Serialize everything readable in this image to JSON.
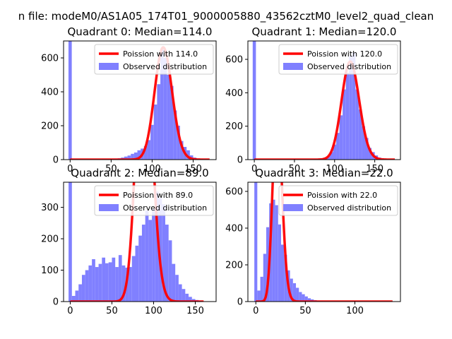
{
  "suptitle": "n file: modeM0/AS1A05_174T01_9000005880_43562cztM0_level2_quad_clean",
  "colors": {
    "poisson": "#ff0000",
    "observed": "#8080ff",
    "axes": "#000000"
  },
  "chart_data": [
    {
      "type": "bar",
      "title": "Quadrant 0: Median=114.0",
      "xlim": [
        -8,
        178
      ],
      "ylim": [
        0,
        700
      ],
      "xticks": [
        0,
        50,
        100,
        150
      ],
      "yticks": [
        0,
        200,
        400,
        600
      ],
      "legend_position": "top-right",
      "series": [
        {
          "name": "Poission with 114.0",
          "kind": "line",
          "mean": 114.0,
          "x": [
            0,
            170
          ]
        },
        {
          "name": "Observed distribution",
          "kind": "histogram",
          "bin_width": 4,
          "bins": [
            {
              "x0": -2,
              "count": 700
            },
            {
              "x0": 2,
              "count": 2
            },
            {
              "x0": 6,
              "count": 2
            },
            {
              "x0": 10,
              "count": 2
            },
            {
              "x0": 14,
              "count": 2
            },
            {
              "x0": 18,
              "count": 2
            },
            {
              "x0": 22,
              "count": 2
            },
            {
              "x0": 26,
              "count": 2
            },
            {
              "x0": 30,
              "count": 2
            },
            {
              "x0": 34,
              "count": 2
            },
            {
              "x0": 38,
              "count": 3
            },
            {
              "x0": 42,
              "count": 3
            },
            {
              "x0": 46,
              "count": 4
            },
            {
              "x0": 50,
              "count": 5
            },
            {
              "x0": 54,
              "count": 6
            },
            {
              "x0": 58,
              "count": 8
            },
            {
              "x0": 62,
              "count": 12
            },
            {
              "x0": 66,
              "count": 18
            },
            {
              "x0": 70,
              "count": 24
            },
            {
              "x0": 74,
              "count": 34
            },
            {
              "x0": 78,
              "count": 42
            },
            {
              "x0": 82,
              "count": 55
            },
            {
              "x0": 86,
              "count": 65
            },
            {
              "x0": 90,
              "count": 80
            },
            {
              "x0": 94,
              "count": 115
            },
            {
              "x0": 98,
              "count": 205
            },
            {
              "x0": 102,
              "count": 325
            },
            {
              "x0": 106,
              "count": 445
            },
            {
              "x0": 110,
              "count": 650
            },
            {
              "x0": 114,
              "count": 600
            },
            {
              "x0": 118,
              "count": 500
            },
            {
              "x0": 122,
              "count": 435
            },
            {
              "x0": 126,
              "count": 290
            },
            {
              "x0": 130,
              "count": 200
            },
            {
              "x0": 134,
              "count": 110
            },
            {
              "x0": 138,
              "count": 75
            },
            {
              "x0": 142,
              "count": 55
            },
            {
              "x0": 146,
              "count": 25
            },
            {
              "x0": 150,
              "count": 12
            },
            {
              "x0": 154,
              "count": 6
            },
            {
              "x0": 158,
              "count": 4
            },
            {
              "x0": 162,
              "count": 2
            }
          ]
        }
      ]
    },
    {
      "type": "bar",
      "title": "Quadrant 1: Median=120.0",
      "xlim": [
        -8,
        182
      ],
      "ylim": [
        0,
        710
      ],
      "xticks": [
        0,
        50,
        100,
        150
      ],
      "yticks": [
        0,
        200,
        400,
        600
      ],
      "legend_position": "top-right",
      "series": [
        {
          "name": "Poission with 120.0",
          "kind": "line",
          "mean": 120.0,
          "x": [
            0,
            175
          ]
        },
        {
          "name": "Observed distribution",
          "kind": "histogram",
          "bin_width": 4,
          "bins": [
            {
              "x0": -2,
              "count": 710
            },
            {
              "x0": 66,
              "count": 2
            },
            {
              "x0": 70,
              "count": 3
            },
            {
              "x0": 74,
              "count": 4
            },
            {
              "x0": 78,
              "count": 6
            },
            {
              "x0": 82,
              "count": 8
            },
            {
              "x0": 86,
              "count": 12
            },
            {
              "x0": 90,
              "count": 20
            },
            {
              "x0": 94,
              "count": 45
            },
            {
              "x0": 98,
              "count": 90
            },
            {
              "x0": 102,
              "count": 160
            },
            {
              "x0": 106,
              "count": 265
            },
            {
              "x0": 110,
              "count": 420
            },
            {
              "x0": 114,
              "count": 520
            },
            {
              "x0": 118,
              "count": 620
            },
            {
              "x0": 122,
              "count": 640
            },
            {
              "x0": 126,
              "count": 420
            },
            {
              "x0": 130,
              "count": 300
            },
            {
              "x0": 134,
              "count": 200
            },
            {
              "x0": 138,
              "count": 130
            },
            {
              "x0": 142,
              "count": 70
            },
            {
              "x0": 146,
              "count": 45
            },
            {
              "x0": 150,
              "count": 25
            },
            {
              "x0": 154,
              "count": 12
            },
            {
              "x0": 158,
              "count": 6
            },
            {
              "x0": 162,
              "count": 3
            }
          ]
        }
      ]
    },
    {
      "type": "bar",
      "title": "Quadrant 2: Median=89.0",
      "xlim": [
        -8,
        175
      ],
      "ylim": [
        0,
        380
      ],
      "xticks": [
        0,
        50,
        100,
        150
      ],
      "yticks": [
        0,
        100,
        200,
        300
      ],
      "legend_position": "top-right",
      "series": [
        {
          "name": "Poission with 89.0",
          "kind": "line",
          "mean": 89.0,
          "x": [
            0,
            160
          ]
        },
        {
          "name": "Observed distribution",
          "kind": "histogram",
          "bin_width": 4,
          "bins": [
            {
              "x0": -2,
              "count": 380
            },
            {
              "x0": 2,
              "count": 18
            },
            {
              "x0": 6,
              "count": 35
            },
            {
              "x0": 10,
              "count": 55
            },
            {
              "x0": 14,
              "count": 85
            },
            {
              "x0": 18,
              "count": 100
            },
            {
              "x0": 22,
              "count": 115
            },
            {
              "x0": 26,
              "count": 135
            },
            {
              "x0": 30,
              "count": 110
            },
            {
              "x0": 34,
              "count": 120
            },
            {
              "x0": 38,
              "count": 140
            },
            {
              "x0": 42,
              "count": 122
            },
            {
              "x0": 46,
              "count": 125
            },
            {
              "x0": 50,
              "count": 140
            },
            {
              "x0": 54,
              "count": 110
            },
            {
              "x0": 58,
              "count": 148
            },
            {
              "x0": 62,
              "count": 115
            },
            {
              "x0": 66,
              "count": 108
            },
            {
              "x0": 70,
              "count": 110
            },
            {
              "x0": 74,
              "count": 145
            },
            {
              "x0": 78,
              "count": 178
            },
            {
              "x0": 82,
              "count": 210
            },
            {
              "x0": 86,
              "count": 245
            },
            {
              "x0": 90,
              "count": 290
            },
            {
              "x0": 94,
              "count": 260
            },
            {
              "x0": 98,
              "count": 295
            },
            {
              "x0": 102,
              "count": 350
            },
            {
              "x0": 106,
              "count": 330
            },
            {
              "x0": 110,
              "count": 310
            },
            {
              "x0": 114,
              "count": 245
            },
            {
              "x0": 118,
              "count": 195
            },
            {
              "x0": 122,
              "count": 120
            },
            {
              "x0": 126,
              "count": 85
            },
            {
              "x0": 130,
              "count": 55
            },
            {
              "x0": 134,
              "count": 40
            },
            {
              "x0": 138,
              "count": 25
            },
            {
              "x0": 142,
              "count": 15
            },
            {
              "x0": 146,
              "count": 8
            },
            {
              "x0": 150,
              "count": 5
            },
            {
              "x0": 154,
              "count": 3
            }
          ]
        }
      ]
    },
    {
      "type": "bar",
      "title": "Quadrant 3: Median=22.0",
      "xlim": [
        -8,
        146
      ],
      "ylim": [
        0,
        650
      ],
      "xticks": [
        0,
        50,
        100
      ],
      "yticks": [
        0,
        200,
        400,
        600
      ],
      "legend_position": "top-right",
      "series": [
        {
          "name": "Poission with 22.0",
          "kind": "line",
          "mean": 22.0,
          "x": [
            0,
            138
          ]
        },
        {
          "name": "Observed distribution",
          "kind": "histogram",
          "bin_width": 3,
          "bins": [
            {
              "x0": -1.5,
              "count": 650
            },
            {
              "x0": 1.5,
              "count": 60
            },
            {
              "x0": 4.5,
              "count": 135
            },
            {
              "x0": 7.5,
              "count": 260
            },
            {
              "x0": 10.5,
              "count": 405
            },
            {
              "x0": 13.5,
              "count": 535
            },
            {
              "x0": 16.5,
              "count": 555
            },
            {
              "x0": 19.5,
              "count": 525
            },
            {
              "x0": 22.5,
              "count": 420
            },
            {
              "x0": 25.5,
              "count": 310
            },
            {
              "x0": 28.5,
              "count": 255
            },
            {
              "x0": 31.5,
              "count": 170
            },
            {
              "x0": 34.5,
              "count": 125
            },
            {
              "x0": 37.5,
              "count": 100
            },
            {
              "x0": 40.5,
              "count": 75
            },
            {
              "x0": 43.5,
              "count": 52
            },
            {
              "x0": 46.5,
              "count": 40
            },
            {
              "x0": 49.5,
              "count": 28
            },
            {
              "x0": 52.5,
              "count": 18
            },
            {
              "x0": 55.5,
              "count": 12
            },
            {
              "x0": 58.5,
              "count": 8
            },
            {
              "x0": 61.5,
              "count": 5
            },
            {
              "x0": 64.5,
              "count": 3
            },
            {
              "x0": 67.5,
              "count": 2
            },
            {
              "x0": 70.5,
              "count": 2
            }
          ]
        }
      ]
    }
  ]
}
